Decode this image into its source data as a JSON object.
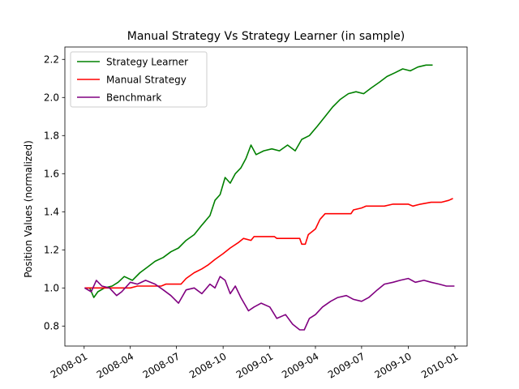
{
  "chart_data": {
    "type": "line",
    "title": "Manual Strategy Vs Strategy Learner (in sample)",
    "xlabel": "",
    "ylabel": "Position Values (normalized)",
    "xlim": [
      "2007-11-24",
      "2010-01-25"
    ],
    "ylim": [
      0.695,
      2.265
    ],
    "x_ticks": [
      "2008-01",
      "2008-04",
      "2008-07",
      "2008-10",
      "2009-01",
      "2009-04",
      "2009-07",
      "2009-10",
      "2010-01"
    ],
    "x_tick_dates": [
      "2008-01-01",
      "2008-04-01",
      "2008-07-01",
      "2008-10-01",
      "2009-01-01",
      "2009-04-01",
      "2009-07-01",
      "2009-10-01",
      "2010-01-01"
    ],
    "y_ticks": [
      0.8,
      1.0,
      1.2,
      1.4,
      1.6,
      1.8,
      2.0,
      2.2
    ],
    "y_tick_labels": [
      "0.8",
      "1.0",
      "1.2",
      "1.4",
      "1.6",
      "1.8",
      "2.0",
      "2.2"
    ],
    "grid": false,
    "legend_position": "top-left",
    "series": [
      {
        "name": "Strategy Learner",
        "color": "#008000",
        "points": [
          [
            "2008-01-02",
            1.0
          ],
          [
            "2008-01-12",
            1.0
          ],
          [
            "2008-01-20",
            0.95
          ],
          [
            "2008-01-28",
            0.98
          ],
          [
            "2008-02-10",
            1.0
          ],
          [
            "2008-02-25",
            1.01
          ],
          [
            "2008-03-08",
            1.03
          ],
          [
            "2008-03-20",
            1.06
          ],
          [
            "2008-04-05",
            1.04
          ],
          [
            "2008-04-20",
            1.08
          ],
          [
            "2008-05-05",
            1.11
          ],
          [
            "2008-05-20",
            1.14
          ],
          [
            "2008-06-05",
            1.16
          ],
          [
            "2008-06-20",
            1.19
          ],
          [
            "2008-07-05",
            1.21
          ],
          [
            "2008-07-20",
            1.25
          ],
          [
            "2008-08-05",
            1.28
          ],
          [
            "2008-08-20",
            1.33
          ],
          [
            "2008-09-05",
            1.38
          ],
          [
            "2008-09-15",
            1.46
          ],
          [
            "2008-09-25",
            1.49
          ],
          [
            "2008-10-05",
            1.58
          ],
          [
            "2008-10-15",
            1.55
          ],
          [
            "2008-10-25",
            1.6
          ],
          [
            "2008-11-05",
            1.63
          ],
          [
            "2008-11-15",
            1.68
          ],
          [
            "2008-11-25",
            1.75
          ],
          [
            "2008-12-05",
            1.7
          ],
          [
            "2008-12-20",
            1.72
          ],
          [
            "2009-01-05",
            1.73
          ],
          [
            "2009-01-20",
            1.72
          ],
          [
            "2009-02-05",
            1.75
          ],
          [
            "2009-02-20",
            1.72
          ],
          [
            "2009-03-05",
            1.78
          ],
          [
            "2009-03-20",
            1.8
          ],
          [
            "2009-04-05",
            1.85
          ],
          [
            "2009-04-20",
            1.9
          ],
          [
            "2009-05-05",
            1.95
          ],
          [
            "2009-05-20",
            1.99
          ],
          [
            "2009-06-05",
            2.02
          ],
          [
            "2009-06-20",
            2.03
          ],
          [
            "2009-07-05",
            2.02
          ],
          [
            "2009-07-20",
            2.05
          ],
          [
            "2009-08-05",
            2.08
          ],
          [
            "2009-08-20",
            2.11
          ],
          [
            "2009-09-05",
            2.13
          ],
          [
            "2009-09-20",
            2.15
          ],
          [
            "2009-10-05",
            2.14
          ],
          [
            "2009-10-20",
            2.16
          ],
          [
            "2009-11-05",
            2.17
          ],
          [
            "2009-11-18",
            2.17
          ]
        ]
      },
      {
        "name": "Manual Strategy",
        "color": "#ff0000",
        "points": [
          [
            "2008-01-02",
            1.0
          ],
          [
            "2008-01-25",
            1.0
          ],
          [
            "2008-02-10",
            1.0
          ],
          [
            "2008-03-01",
            1.0
          ],
          [
            "2008-03-15",
            1.0
          ],
          [
            "2008-04-01",
            1.0
          ],
          [
            "2008-04-15",
            1.01
          ],
          [
            "2008-05-15",
            1.01
          ],
          [
            "2008-06-01",
            1.01
          ],
          [
            "2008-06-10",
            1.02
          ],
          [
            "2008-07-10",
            1.02
          ],
          [
            "2008-07-20",
            1.05
          ],
          [
            "2008-08-05",
            1.08
          ],
          [
            "2008-08-20",
            1.1
          ],
          [
            "2008-09-01",
            1.12
          ],
          [
            "2008-09-15",
            1.15
          ],
          [
            "2008-10-01",
            1.18
          ],
          [
            "2008-10-15",
            1.21
          ],
          [
            "2008-11-01",
            1.24
          ],
          [
            "2008-11-10",
            1.26
          ],
          [
            "2008-11-25",
            1.25
          ],
          [
            "2008-12-01",
            1.27
          ],
          [
            "2008-12-20",
            1.27
          ],
          [
            "2009-01-10",
            1.27
          ],
          [
            "2009-01-15",
            1.26
          ],
          [
            "2009-02-15",
            1.26
          ],
          [
            "2009-03-01",
            1.26
          ],
          [
            "2009-03-05",
            1.23
          ],
          [
            "2009-03-12",
            1.23
          ],
          [
            "2009-03-18",
            1.28
          ],
          [
            "2009-04-01",
            1.31
          ],
          [
            "2009-04-10",
            1.36
          ],
          [
            "2009-04-20",
            1.39
          ],
          [
            "2009-05-15",
            1.39
          ],
          [
            "2009-06-10",
            1.39
          ],
          [
            "2009-06-15",
            1.41
          ],
          [
            "2009-07-01",
            1.42
          ],
          [
            "2009-07-10",
            1.43
          ],
          [
            "2009-08-15",
            1.43
          ],
          [
            "2009-09-01",
            1.44
          ],
          [
            "2009-10-01",
            1.44
          ],
          [
            "2009-10-10",
            1.43
          ],
          [
            "2009-10-25",
            1.44
          ],
          [
            "2009-11-15",
            1.45
          ],
          [
            "2009-12-05",
            1.45
          ],
          [
            "2009-12-20",
            1.46
          ],
          [
            "2009-12-28",
            1.47
          ]
        ]
      },
      {
        "name": "Benchmark",
        "color": "#800080",
        "points": [
          [
            "2008-01-02",
            1.0
          ],
          [
            "2008-01-15",
            0.98
          ],
          [
            "2008-01-25",
            1.04
          ],
          [
            "2008-02-05",
            1.01
          ],
          [
            "2008-02-20",
            1.0
          ],
          [
            "2008-03-05",
            0.96
          ],
          [
            "2008-03-15",
            0.98
          ],
          [
            "2008-04-01",
            1.03
          ],
          [
            "2008-04-15",
            1.02
          ],
          [
            "2008-05-01",
            1.04
          ],
          [
            "2008-05-20",
            1.02
          ],
          [
            "2008-06-05",
            0.99
          ],
          [
            "2008-06-20",
            0.96
          ],
          [
            "2008-07-05",
            0.92
          ],
          [
            "2008-07-20",
            0.99
          ],
          [
            "2008-08-05",
            1.0
          ],
          [
            "2008-08-20",
            0.97
          ],
          [
            "2008-09-05",
            1.02
          ],
          [
            "2008-09-15",
            1.0
          ],
          [
            "2008-09-25",
            1.06
          ],
          [
            "2008-10-05",
            1.04
          ],
          [
            "2008-10-15",
            0.97
          ],
          [
            "2008-10-25",
            1.01
          ],
          [
            "2008-11-05",
            0.95
          ],
          [
            "2008-11-20",
            0.88
          ],
          [
            "2008-12-01",
            0.9
          ],
          [
            "2008-12-15",
            0.92
          ],
          [
            "2009-01-01",
            0.9
          ],
          [
            "2009-01-15",
            0.84
          ],
          [
            "2009-02-01",
            0.86
          ],
          [
            "2009-02-15",
            0.81
          ],
          [
            "2009-03-01",
            0.78
          ],
          [
            "2009-03-10",
            0.78
          ],
          [
            "2009-03-20",
            0.84
          ],
          [
            "2009-04-01",
            0.86
          ],
          [
            "2009-04-15",
            0.9
          ],
          [
            "2009-05-01",
            0.93
          ],
          [
            "2009-05-15",
            0.95
          ],
          [
            "2009-06-01",
            0.96
          ],
          [
            "2009-06-15",
            0.94
          ],
          [
            "2009-07-01",
            0.93
          ],
          [
            "2009-07-15",
            0.95
          ],
          [
            "2009-08-01",
            0.99
          ],
          [
            "2009-08-15",
            1.02
          ],
          [
            "2009-09-01",
            1.03
          ],
          [
            "2009-09-15",
            1.04
          ],
          [
            "2009-10-01",
            1.05
          ],
          [
            "2009-10-15",
            1.03
          ],
          [
            "2009-11-01",
            1.04
          ],
          [
            "2009-11-15",
            1.03
          ],
          [
            "2009-12-01",
            1.02
          ],
          [
            "2009-12-15",
            1.01
          ],
          [
            "2009-12-31",
            1.01
          ]
        ]
      }
    ]
  }
}
